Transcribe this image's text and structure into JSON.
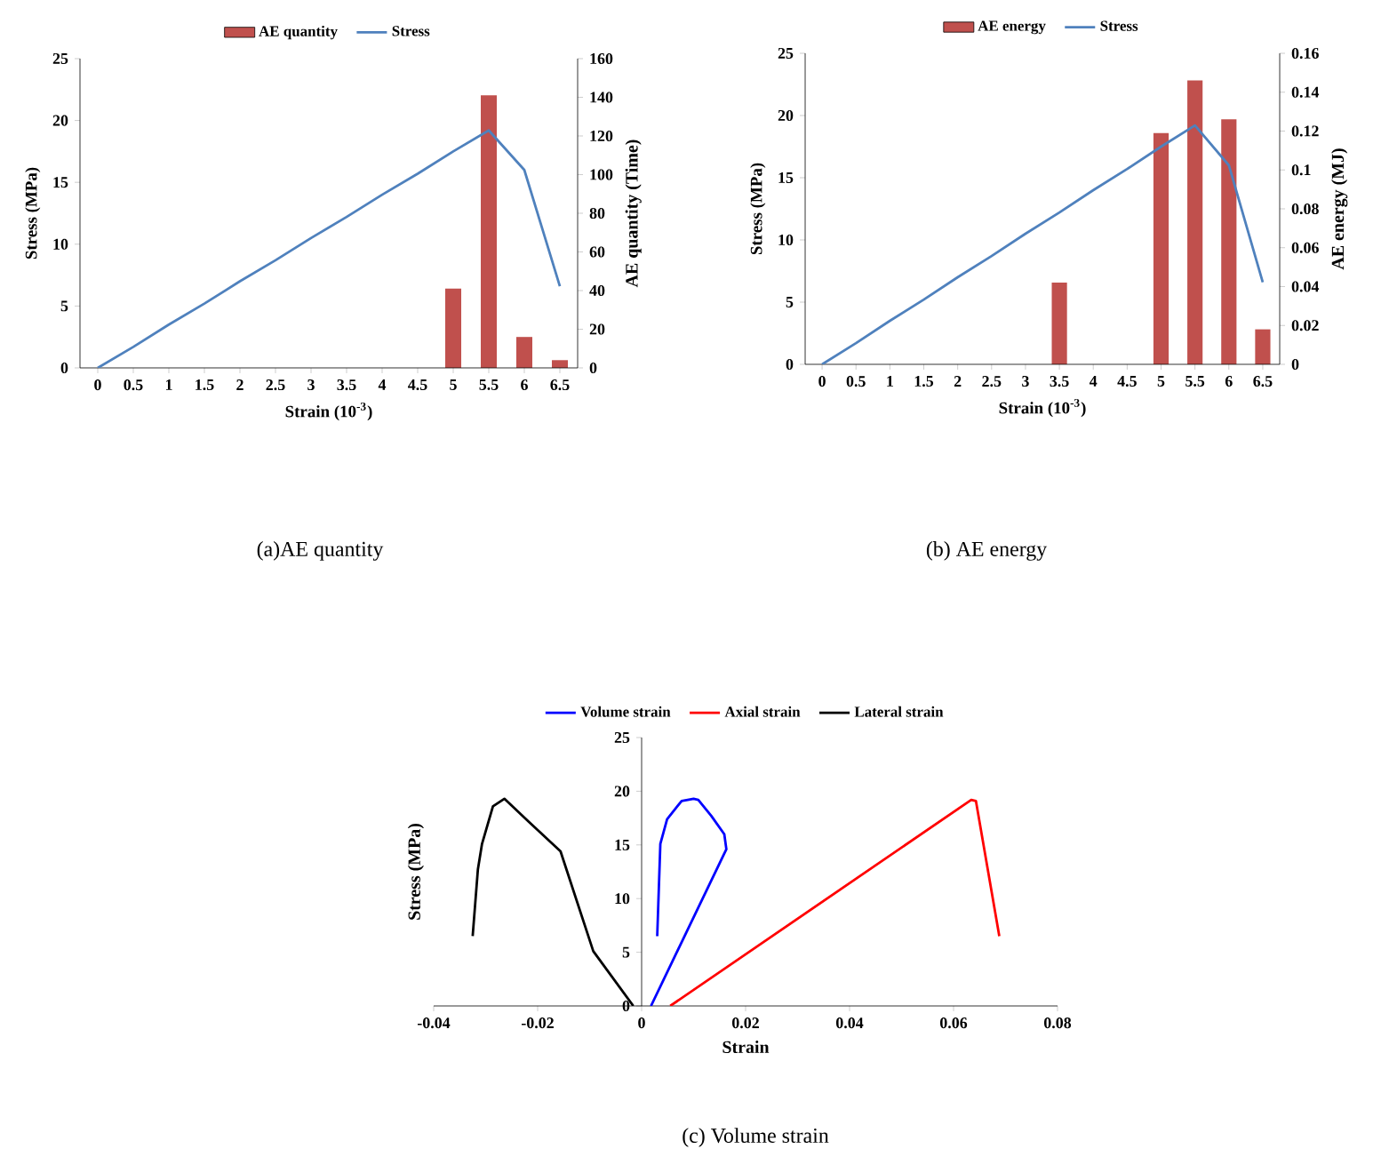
{
  "chart_data": [
    {
      "type": "bar",
      "title": "(a)AE quantity",
      "xlabel": "Strain (10$^{-3}$)",
      "ylabel": "Stress (MPa)",
      "y2label": "AE quantity (Time)",
      "categories": [
        "0",
        "0.5",
        "1",
        "1.5",
        "2",
        "2.5",
        "3",
        "3.5",
        "4",
        "4.5",
        "5",
        "5.5",
        "6",
        "6.5"
      ],
      "series": [
        {
          "name": "AE quantity",
          "type": "bar",
          "axis": "y2",
          "color": "#c0504d",
          "values": [
            null,
            null,
            null,
            null,
            null,
            null,
            null,
            null,
            null,
            null,
            41,
            141,
            16,
            4
          ]
        },
        {
          "name": "Stress",
          "type": "line",
          "color": "#4f81bd",
          "values": [
            0,
            1.7,
            3.5,
            5.2,
            7.0,
            8.7,
            10.5,
            12.2,
            14.0,
            15.7,
            17.5,
            19.2,
            16.0,
            6.6
          ]
        }
      ],
      "ylim": [
        0,
        25
      ],
      "yticks": [
        0,
        5,
        10,
        15,
        20,
        25
      ],
      "y2lim": [
        0,
        160
      ],
      "y2ticks": [
        0,
        20,
        40,
        60,
        80,
        100,
        120,
        140,
        160
      ],
      "legend": "top"
    },
    {
      "type": "bar",
      "title": "(b) AE energy",
      "xlabel": "Strain (10$^{-3}$)",
      "ylabel": "Stress (MPa)",
      "y2label": "AE energy (MJ)",
      "categories": [
        "0",
        "0.5",
        "1",
        "1.5",
        "2",
        "2.5",
        "3",
        "3.5",
        "4",
        "4.5",
        "5",
        "5.5",
        "6",
        "6.5"
      ],
      "series": [
        {
          "name": "AE energy",
          "type": "bar",
          "axis": "y2",
          "color": "#c0504d",
          "values": [
            null,
            null,
            null,
            null,
            null,
            null,
            null,
            0.042,
            null,
            null,
            0.119,
            0.146,
            0.126,
            0.018
          ]
        },
        {
          "name": "Stress",
          "type": "line",
          "color": "#4f81bd",
          "values": [
            0,
            1.7,
            3.5,
            5.2,
            7.0,
            8.7,
            10.5,
            12.2,
            14.0,
            15.7,
            17.5,
            19.2,
            16.0,
            6.6
          ]
        }
      ],
      "ylim": [
        0,
        25
      ],
      "yticks": [
        0,
        5,
        10,
        15,
        20,
        25
      ],
      "y2lim": [
        0,
        0.16
      ],
      "y2ticks": [
        0,
        0.02,
        0.04,
        0.06,
        0.08,
        0.1,
        0.12,
        0.14,
        0.16
      ],
      "legend": "top"
    },
    {
      "type": "line",
      "title": "(c) Volume strain",
      "xlabel": "Strain",
      "ylabel": "Stress (MPa)",
      "series": [
        {
          "name": "Volume strain",
          "color": "#0000ff",
          "x": [
            0.0018,
            0.0163,
            0.0159,
            0.0134,
            0.0109,
            0.01,
            0.0077,
            0.0049,
            0.0036,
            0.003
          ],
          "values": [
            0,
            14.6,
            16.0,
            17.7,
            19.2,
            19.3,
            19.1,
            17.4,
            15.1,
            6.5
          ]
        },
        {
          "name": "Axial strain",
          "color": "#ff0000",
          "x": [
            0.0055,
            0.0634,
            0.0643,
            0.0688
          ],
          "values": [
            0,
            19.2,
            19.1,
            6.5
          ]
        },
        {
          "name": "Lateral strain",
          "color": "#000000",
          "x": [
            -0.0016,
            -0.0093,
            -0.0156,
            -0.0218,
            -0.0264,
            -0.0286,
            -0.0307,
            -0.0315,
            -0.0325
          ],
          "values": [
            0,
            5.1,
            14.4,
            17.2,
            19.3,
            18.6,
            15.1,
            12.7,
            6.5
          ]
        }
      ],
      "xlim": [
        -0.04,
        0.08
      ],
      "xticks": [
        -0.04,
        -0.02,
        0,
        0.02,
        0.04,
        0.06,
        0.08
      ],
      "ylim": [
        0,
        25
      ],
      "yticks": [
        0,
        5,
        10,
        15,
        20,
        25
      ],
      "legend": "top"
    }
  ]
}
